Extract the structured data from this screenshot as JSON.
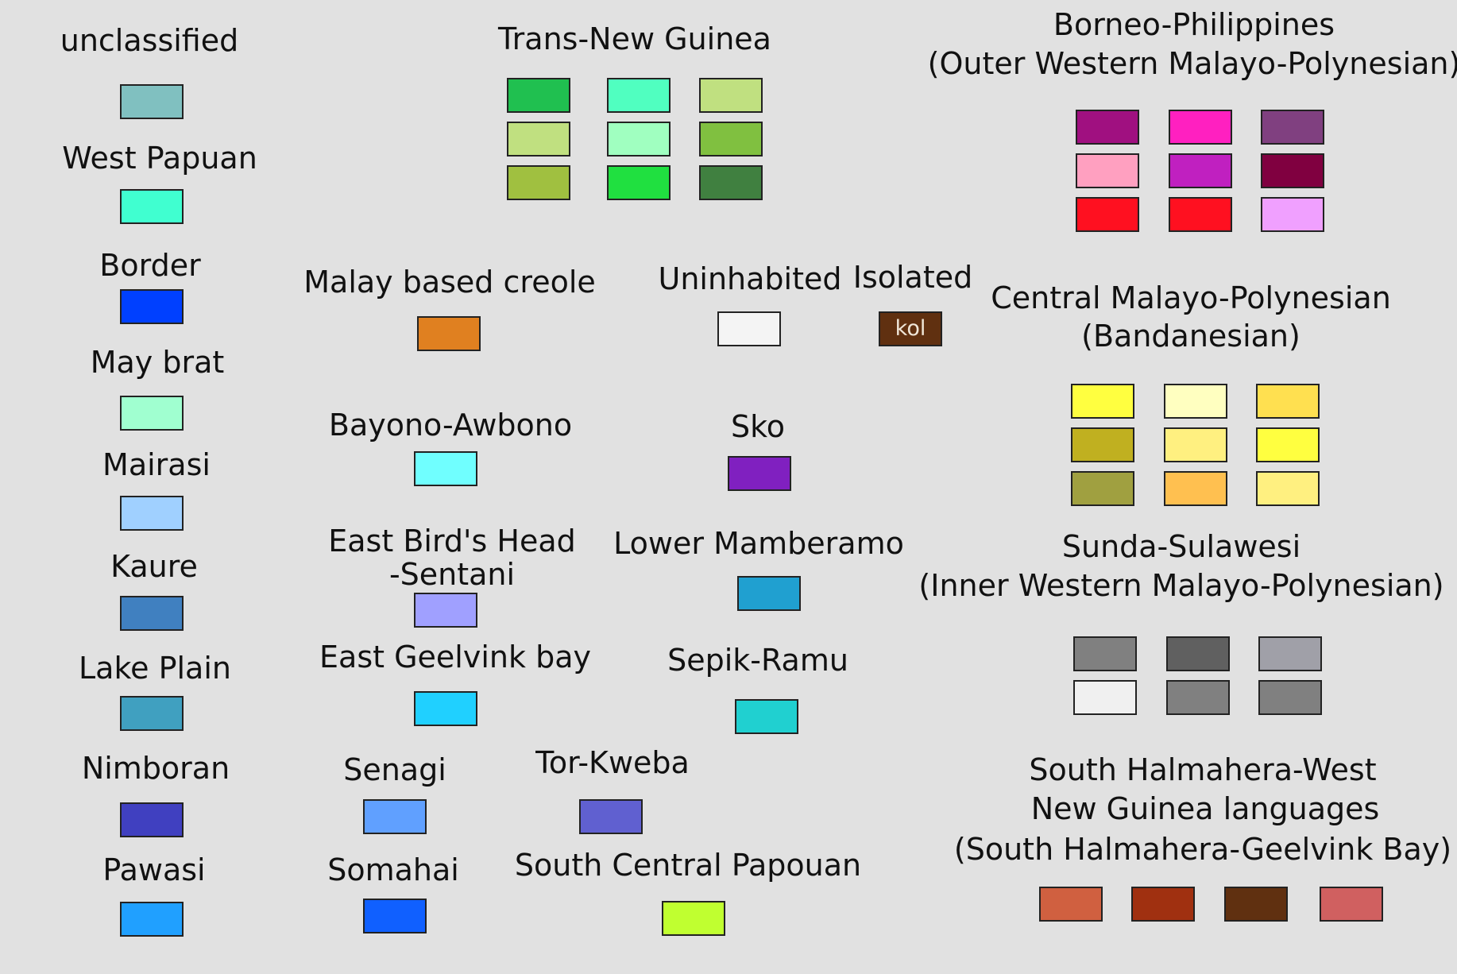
{
  "legend": {
    "col1": [
      {
        "label": "unclassified",
        "color": "#80c0c0"
      },
      {
        "label": "West Papuan",
        "color": "#40ffd0"
      },
      {
        "label": "Border",
        "color": "#0040ff"
      },
      {
        "label": "May brat",
        "color": "#a0ffd0"
      },
      {
        "label": "Mairasi",
        "color": "#a0d0ff"
      },
      {
        "label": "Kaure",
        "color": "#4080c0"
      },
      {
        "label": "Lake Plain",
        "color": "#40a0c0"
      },
      {
        "label": "Nimboran",
        "color": "#4040c0"
      },
      {
        "label": "Pawasi",
        "color": "#20a0ff"
      }
    ],
    "tng": {
      "label": "Trans-New Guinea",
      "colors": [
        "#20c050",
        "#50ffc0",
        "#c0e080",
        "#c0e080",
        "#a0ffc0",
        "#80c040",
        "#a0c040",
        "#20e040",
        "#408040"
      ]
    },
    "borneo": {
      "line1": "Borneo-Philippines",
      "line2": "(Outer Western Malayo-Polynesian)",
      "colors": [
        "#a01080",
        "#ff20c0",
        "#804080",
        "#ffa0c0",
        "#c020c0",
        "#800040",
        "#ff1020",
        "#ff1020",
        "#f0a0ff"
      ]
    },
    "malay": {
      "label": "Malay based creole",
      "color": "#e08020"
    },
    "uninhabited": {
      "label": "Uninhabited",
      "color": "#f4f4f4"
    },
    "isolated": {
      "label": "Isolated",
      "color": "#603010",
      "text": "kol"
    },
    "central": {
      "line1": "Central Malayo-Polynesian",
      "line2": "(Bandanesian)",
      "colors": [
        "#ffff40",
        "#ffffc0",
        "#ffe050",
        "#c0b020",
        "#fff080",
        "#ffff40",
        "#a0a040",
        "#ffc050",
        "#fff080"
      ]
    },
    "bayono": {
      "label": "Bayono-Awbono",
      "color": "#70ffff"
    },
    "sko": {
      "label": "Sko",
      "color": "#8020c0"
    },
    "ebh": {
      "line1": "East Bird's Head",
      "line2": "-Sentani",
      "color": "#a0a0ff"
    },
    "lower": {
      "label": "Lower Mamberamo",
      "color": "#20a0d0"
    },
    "sunda": {
      "line1": "Sunda-Sulawesi",
      "line2": "(Inner Western Malayo-Polynesian)",
      "colors": [
        "#808080",
        "#606060",
        "#a0a0a8",
        "#f0f0f0",
        "#808080",
        "#808080"
      ]
    },
    "eastgeel": {
      "label": "East  Geelvink bay",
      "color": "#20d0ff"
    },
    "sepik": {
      "label": "Sepik-Ramu",
      "color": "#20d0d0"
    },
    "senagi": {
      "label": "Senagi",
      "color": "#60a0ff"
    },
    "tor": {
      "label": "Tor-Kweba",
      "color": "#6060d0"
    },
    "somahai": {
      "label": "Somahai",
      "color": "#1060ff"
    },
    "scp": {
      "label": "South Central Papouan",
      "color": "#c0ff30"
    },
    "halm": {
      "line1": "South Halmahera-West",
      "line2": "New Guinea languages",
      "line3": "(South Halmahera-Geelvink Bay)",
      "colors": [
        "#d06040",
        "#a03010",
        "#603010",
        "#d06060"
      ]
    }
  }
}
